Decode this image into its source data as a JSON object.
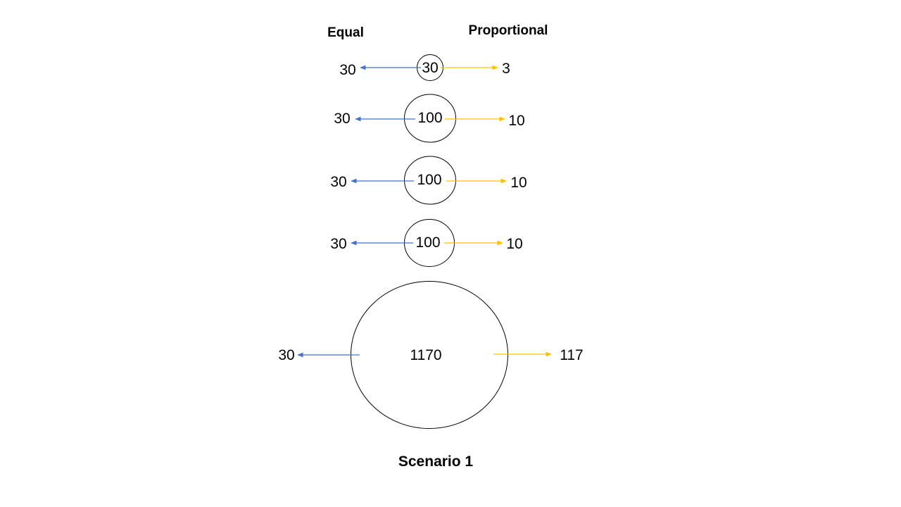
{
  "headers": {
    "equal": "Equal",
    "proportional": "Proportional"
  },
  "colors": {
    "equal_arrow": "#4472C4",
    "proportional_arrow": "#FFC000",
    "circle_stroke": "#000000"
  },
  "rows": [
    {
      "circle_label": "30",
      "equal_value": "30",
      "proportional_value": "3"
    },
    {
      "circle_label": "100",
      "equal_value": "30",
      "proportional_value": "10"
    },
    {
      "circle_label": "100",
      "equal_value": "30",
      "proportional_value": "10"
    },
    {
      "circle_label": "100",
      "equal_value": "30",
      "proportional_value": "10"
    },
    {
      "circle_label": "1170",
      "equal_value": "30",
      "proportional_value": "117"
    }
  ],
  "caption": "Scenario 1"
}
